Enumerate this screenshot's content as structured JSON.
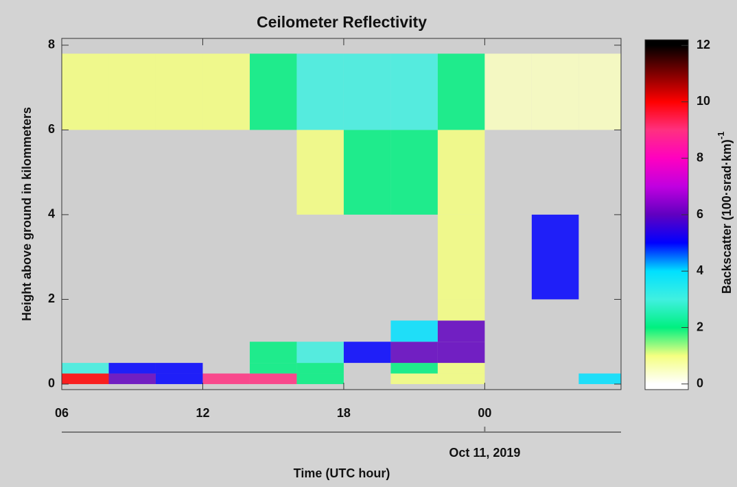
{
  "chart_data": {
    "type": "heatmap",
    "title": "Ceilometer Reflectivity",
    "x_label": "Time (UTC hour)",
    "y_label": "Height above ground in kilommeters",
    "x_edges": [
      6,
      8,
      10,
      12,
      14,
      16,
      18,
      20,
      22,
      24,
      26,
      28,
      29.8
    ],
    "y_edges": [
      0,
      0.25,
      0.5,
      1,
      1.5,
      2,
      4,
      6,
      7.8
    ],
    "z": [
      [
        10,
        6,
        5,
        9,
        9,
        2,
        null,
        1,
        1,
        null,
        null,
        4
      ],
      [
        3,
        5,
        5,
        null,
        2,
        2,
        null,
        2,
        1,
        null,
        null,
        null
      ],
      [
        null,
        null,
        null,
        null,
        2,
        3,
        5,
        6,
        6,
        null,
        null,
        null
      ],
      [
        null,
        null,
        null,
        null,
        null,
        null,
        null,
        4,
        6,
        null,
        null,
        null
      ],
      [
        null,
        null,
        null,
        null,
        null,
        null,
        null,
        null,
        1,
        null,
        null,
        null
      ],
      [
        null,
        null,
        null,
        null,
        null,
        null,
        null,
        null,
        1,
        null,
        5,
        null
      ],
      [
        null,
        null,
        null,
        null,
        null,
        1,
        2,
        2,
        1,
        null,
        null,
        null
      ],
      [
        1,
        1,
        1,
        1,
        2,
        3,
        3,
        3,
        2,
        0.5,
        0.5,
        0.5
      ]
    ],
    "xlim": [
      6,
      29.8
    ],
    "xticks": [
      {
        "value": 6,
        "label": "06"
      },
      12,
      18,
      {
        "value": 24,
        "label": "00"
      }
    ],
    "ylim": [
      -0.13,
      8.16
    ],
    "yticks": [
      0,
      2,
      4,
      6,
      8
    ],
    "date_tick": {
      "value": 24,
      "label": "Oct 11, 2019"
    },
    "background": "#cfcfcf",
    "colorbar": {
      "label": "Backscatter (100·srad·km)",
      "label_superscript": "-1",
      "clim": [
        0,
        12
      ],
      "lim": [
        -0.2,
        12.2
      ],
      "ticks": [
        0,
        2,
        4,
        6,
        8,
        10,
        12
      ],
      "colormap": [
        "#ffffff",
        "#f4ff80",
        "#00f080",
        "#40f0e0",
        "#00e0ff",
        "#0000ff",
        "#6000c0",
        "#c000e0",
        "#ff00c0",
        "#ff3080",
        "#ff0000",
        "#800000",
        "#000000"
      ]
    }
  }
}
